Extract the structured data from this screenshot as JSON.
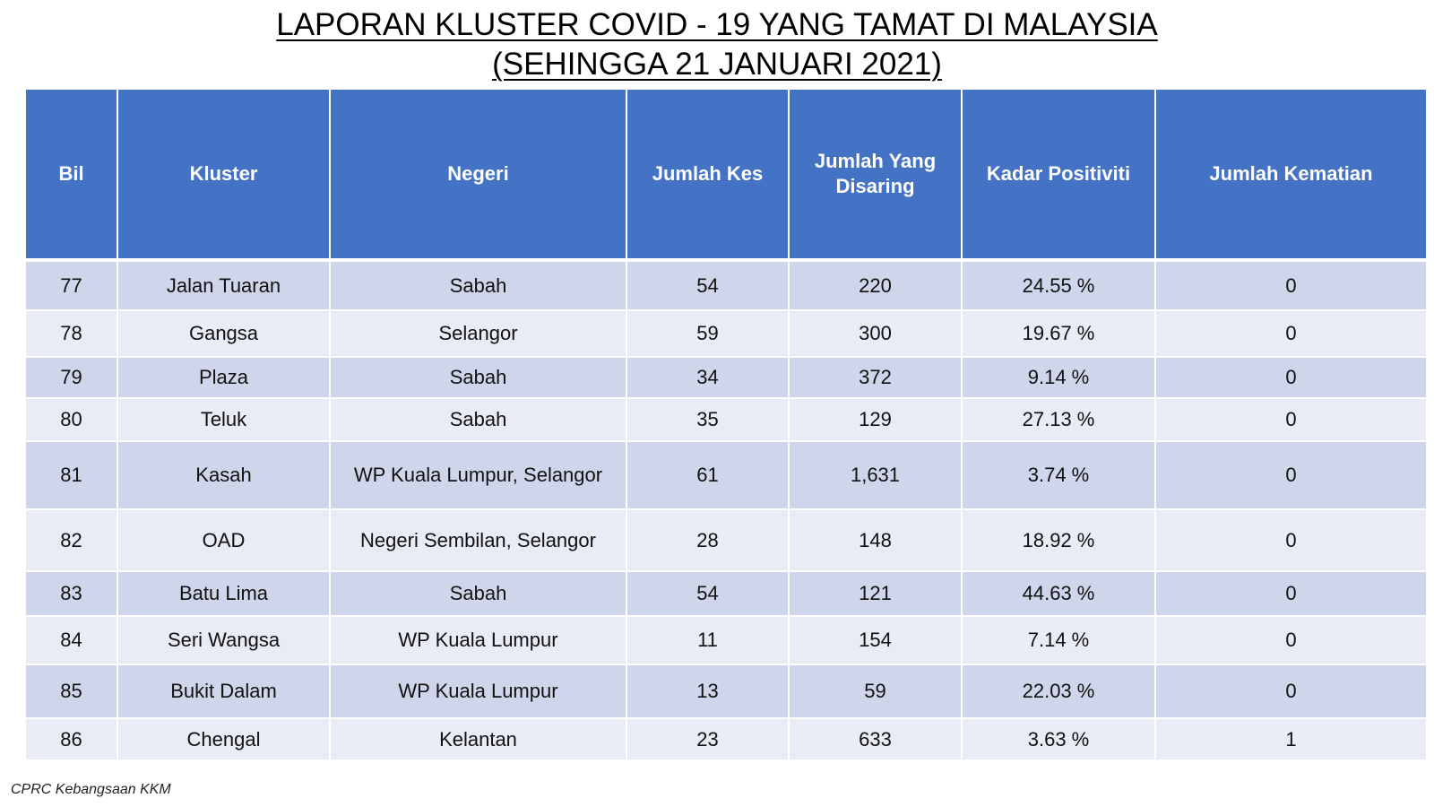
{
  "title": {
    "line1": "LAPORAN KLUSTER COVID - 19 YANG TAMAT DI MALAYSIA",
    "line2": "(SEHINGGA 21 JANUARI 2021)"
  },
  "table": {
    "headers": [
      "Bil",
      "Kluster",
      "Negeri",
      "Jumlah Kes",
      "Jumlah Yang Disaring",
      "Kadar Positiviti",
      "Jumlah Kematian"
    ],
    "rows": [
      [
        "77",
        "Jalan Tuaran",
        "Sabah",
        "54",
        "220",
        "24.55 %",
        "0"
      ],
      [
        "78",
        "Gangsa",
        "Selangor",
        "59",
        "300",
        "19.67 %",
        "0"
      ],
      [
        "79",
        "Plaza",
        "Sabah",
        "34",
        "372",
        "9.14 %",
        "0"
      ],
      [
        "80",
        "Teluk",
        "Sabah",
        "35",
        "129",
        "27.13 %",
        "0"
      ],
      [
        "81",
        "Kasah",
        "WP Kuala Lumpur, Selangor",
        "61",
        "1,631",
        "3.74 %",
        "0"
      ],
      [
        "82",
        "OAD",
        "Negeri Sembilan, Selangor",
        "28",
        "148",
        "18.92 %",
        "0"
      ],
      [
        "83",
        "Batu Lima",
        "Sabah",
        "54",
        "121",
        "44.63 %",
        "0"
      ],
      [
        "84",
        "Seri Wangsa",
        "WP Kuala Lumpur",
        "11",
        "154",
        "7.14 %",
        "0"
      ],
      [
        "85",
        "Bukit Dalam",
        "WP Kuala Lumpur",
        "13",
        "59",
        "22.03 %",
        "0"
      ],
      [
        "86",
        "Chengal",
        "Kelantan",
        "23",
        "633",
        "3.63 %",
        "1"
      ]
    ]
  },
  "footer": "CPRC Kebangsaan KKM",
  "colors": {
    "header_bg": "#4472c4",
    "row_dark": "#cfd5ea",
    "row_light": "#e9ebf5"
  }
}
